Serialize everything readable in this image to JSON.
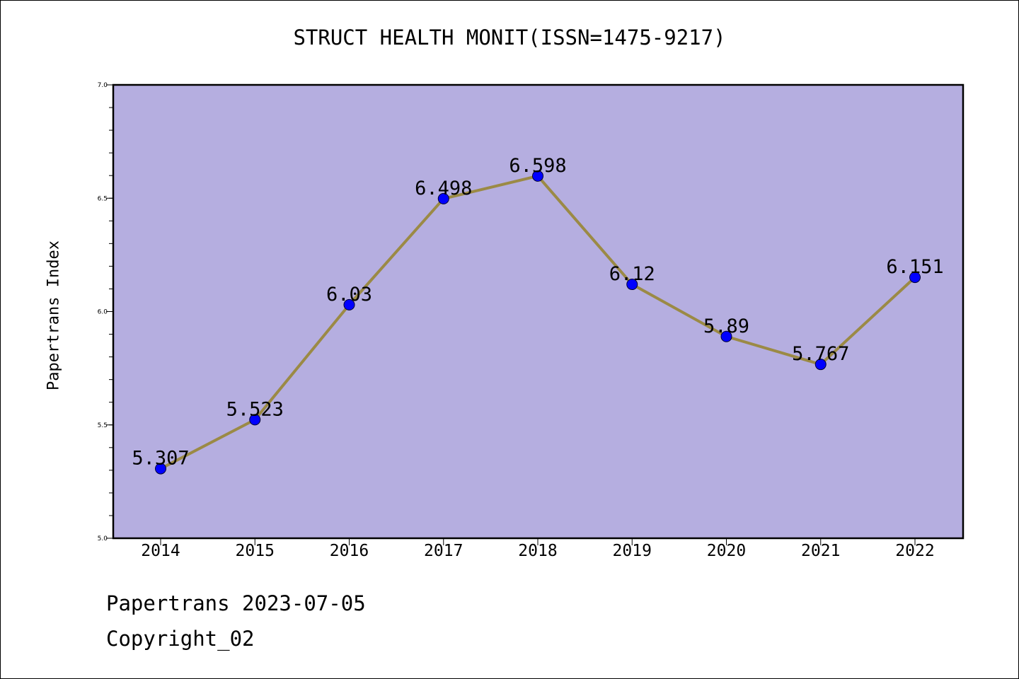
{
  "chart_data": {
    "type": "line",
    "title": "STRUCT HEALTH MONIT(ISSN=1475-9217)",
    "xlabel": "",
    "ylabel": "Papertrans Index",
    "categories": [
      "2014",
      "2015",
      "2016",
      "2017",
      "2018",
      "2019",
      "2020",
      "2021",
      "2022"
    ],
    "series": [
      {
        "values": [
          5.307,
          5.523,
          6.03,
          6.498,
          6.598,
          6.12,
          5.89,
          5.767,
          6.151
        ],
        "labels": [
          "5.307",
          "5.523",
          "6.03",
          "6.498",
          "6.598",
          "6.12",
          "5.89",
          "5.767",
          "6.151"
        ]
      }
    ],
    "ylim": [
      5.0,
      7.0
    ],
    "yticks": [
      5.0,
      5.5,
      6.0,
      6.5,
      7.0
    ],
    "ytick_labels": [
      "5.0",
      "5.5",
      "6.0",
      "6.5",
      "7.0"
    ],
    "grid": false,
    "colors": {
      "plot_background": "#b5aee0",
      "line": "#9b8a45",
      "marker": "#0000ff"
    }
  },
  "footer": {
    "date_text": "Papertrans 2023-07-05",
    "copyright_text": "Copyright_02"
  }
}
